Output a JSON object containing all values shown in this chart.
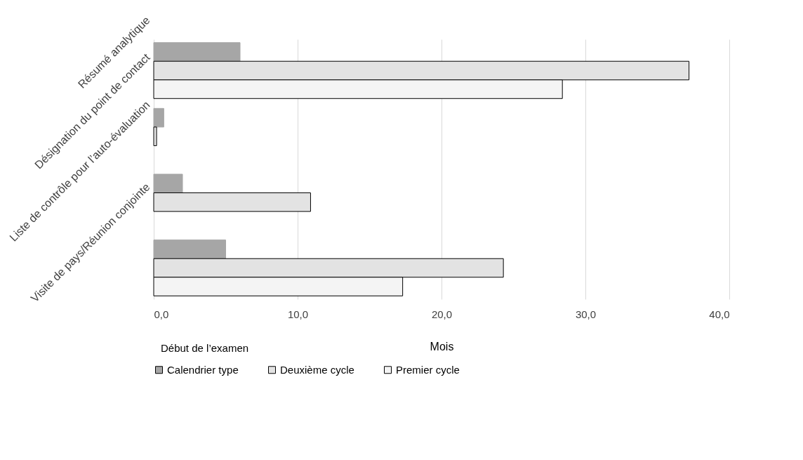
{
  "chart_data": {
    "type": "bar",
    "orientation": "horizontal",
    "xlabel": "Mois",
    "annotations": [
      "Début de l’examen"
    ],
    "categories": [
      "Résumé analytique",
      "Désignation du point de contact",
      "Liste de contrôle pour l’auto-évaluation",
      "Visite de pays/Réunion conjointe"
    ],
    "series": [
      {
        "name": "Calendrier type",
        "color": "#a6a6a6",
        "values": [
          6.0,
          0.7,
          2.0,
          5.0
        ]
      },
      {
        "name": "Deuxième cycle",
        "color": "#e3e3e3",
        "values": [
          37.2,
          0.2,
          10.9,
          24.3
        ]
      },
      {
        "name": "Premier cycle",
        "color": "#f4f4f4",
        "values": [
          28.4,
          null,
          null,
          17.3
        ]
      }
    ],
    "xlim": [
      0,
      40
    ],
    "xticks": [
      {
        "value": 0,
        "label": "0,0"
      },
      {
        "value": 10,
        "label": "10,0"
      },
      {
        "value": 20,
        "label": "20,0"
      },
      {
        "value": 30,
        "label": "30,0"
      },
      {
        "value": 40,
        "label": "40,0"
      }
    ],
    "grid": "x",
    "legend": "bottom"
  }
}
